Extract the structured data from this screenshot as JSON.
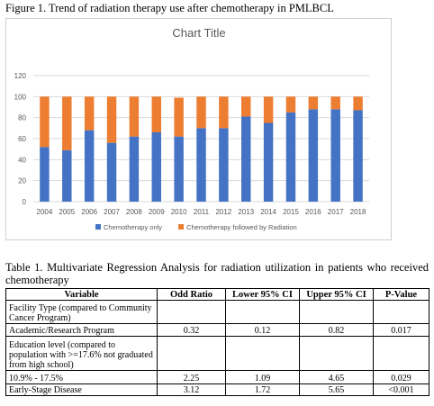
{
  "figure": {
    "caption": "Figure 1. Trend of radiation therapy use after chemotherapy in PMLBCL"
  },
  "chart_data": {
    "type": "bar",
    "stacked": true,
    "title": "Chart Title",
    "categories": [
      "2004",
      "2005",
      "2006",
      "2007",
      "2008",
      "2009",
      "2010",
      "2011",
      "2012",
      "2013",
      "2014",
      "2015",
      "2016",
      "2017",
      "2018"
    ],
    "series": [
      {
        "name": "Chemotherapy only",
        "color": "#4472c4",
        "values": [
          52,
          49,
          68,
          56,
          62,
          66,
          62,
          70,
          70,
          81,
          75,
          85,
          88,
          88,
          87
        ]
      },
      {
        "name": "Chemotherapy followed by Radiation",
        "color": "#ed7d31",
        "values": [
          48,
          51,
          32,
          44,
          38,
          34,
          37,
          30,
          30,
          19,
          25,
          15,
          12,
          12,
          13
        ]
      }
    ],
    "ylim": [
      0,
      120
    ],
    "yticks": [
      0,
      20,
      40,
      60,
      80,
      100,
      120
    ],
    "grid": true,
    "legend": "bottom"
  },
  "table": {
    "caption": "Table 1. Multivariate Regression Analysis for radiation utilization in patients who received chemotherapy",
    "headers": [
      "Variable",
      "Odd Ratio",
      "Lower 95% CI",
      "Upper 95% CI",
      "P-Value"
    ],
    "rows": [
      [
        "Facility Type (compared to Community Cancer Program)",
        "",
        "",
        "",
        ""
      ],
      [
        "Academic/Research Program",
        "0.32",
        "0.12",
        "0.82",
        "0.017"
      ],
      [
        "Education level (compared to population with >=17.6% not graduated from high school)",
        "",
        "",
        "",
        ""
      ],
      [
        "10.9% - 17.5%",
        "2.25",
        "1.09",
        "4.65",
        "0.029"
      ],
      [
        "Early-Stage Disease",
        "3.12",
        "1.72",
        "5.65",
        "<0.001"
      ]
    ]
  }
}
